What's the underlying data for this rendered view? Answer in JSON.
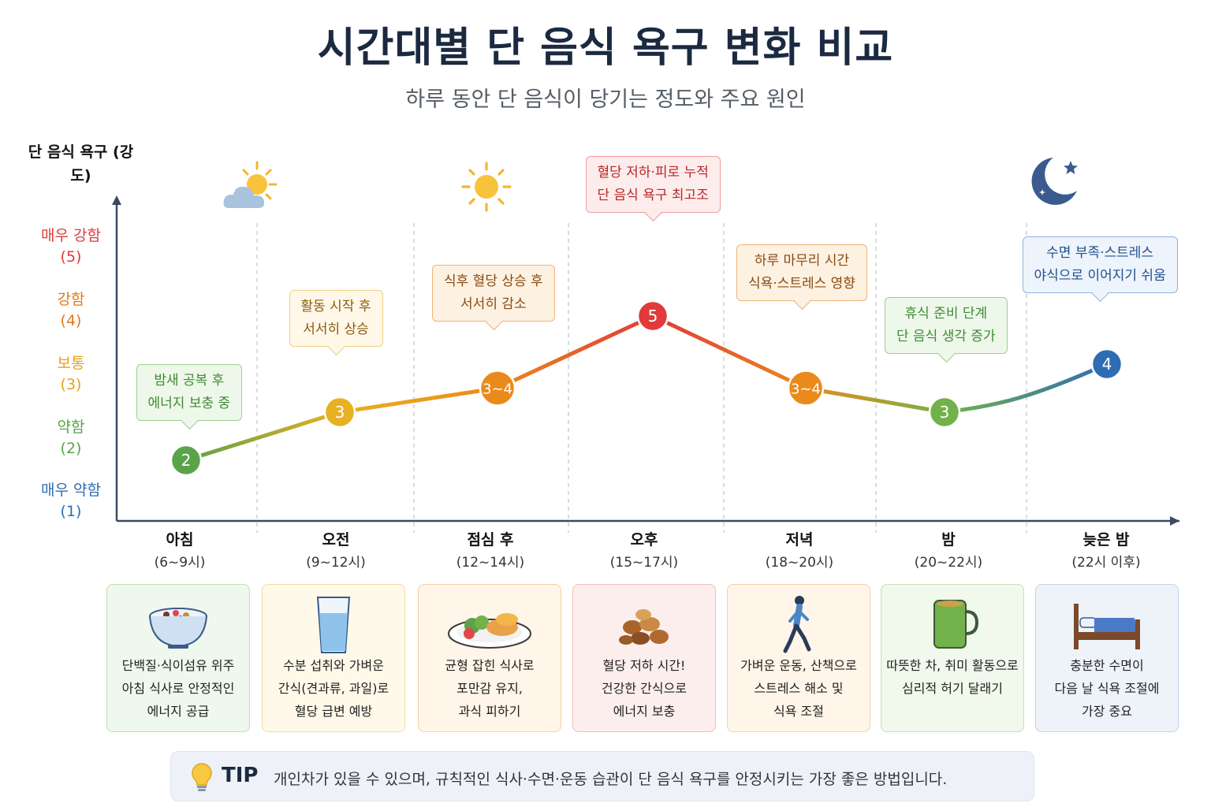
{
  "title": "시간대별 단 음식 욕구 변화 비교",
  "subtitle": "하루 동안 단   음식이 당기는 정도와 주요 원인",
  "colors": {
    "level1": "#2e6db4",
    "level2": "#5aa34a",
    "level3": "#e6a417",
    "level4": "#e07a1b",
    "level5": "#e03a3a",
    "axis": "#3a4a63"
  },
  "chart_data": {
    "type": "line",
    "title": "시간대별 단 음식 욕구 변화 비교",
    "ylabel": "단 음식 욕구 (강도)",
    "ylim": [
      1,
      5
    ],
    "y_ticks": [
      {
        "value": 5,
        "label": "매우 강함",
        "sub": "(5)"
      },
      {
        "value": 4,
        "label": "강함",
        "sub": "(4)"
      },
      {
        "value": 3,
        "label": "보통",
        "sub": "(3)"
      },
      {
        "value": 2,
        "label": "약함",
        "sub": "(2)"
      },
      {
        "value": 1,
        "label": "매우 약함",
        "sub": "(1)"
      }
    ],
    "categories": [
      {
        "name": "아침",
        "range": "(6~9시)"
      },
      {
        "name": "오전",
        "range": "(9~12시)"
      },
      {
        "name": "점심 후",
        "range": "(12~14시)"
      },
      {
        "name": "오후",
        "range": "(15~17시)"
      },
      {
        "name": "저녁",
        "range": "(18~20시)"
      },
      {
        "name": "밤",
        "range": "(20~22시)"
      },
      {
        "name": "늦은 밤",
        "range": "(22시 이후)"
      }
    ],
    "points": [
      {
        "value": 2,
        "label": "2",
        "color": "#5aa34a"
      },
      {
        "value": 3,
        "label": "3",
        "color": "#e8b023"
      },
      {
        "value": 3.5,
        "label": "3~4",
        "color": "#ea8a1c"
      },
      {
        "value": 5,
        "label": "5",
        "color": "#e03a3a"
      },
      {
        "value": 3.5,
        "label": "3~4",
        "color": "#ea8a1c"
      },
      {
        "value": 3,
        "label": "3",
        "color": "#72b24a"
      },
      {
        "value": 4,
        "label": "4",
        "color": "#2e6db4"
      }
    ],
    "annotations": [
      {
        "lines": [
          "밤새 공복 후",
          "에너지 보충 중"
        ],
        "color": "#3d8a34",
        "bg": "#eef8ea",
        "border": "#9fce93"
      },
      {
        "lines": [
          "활동 시작 후",
          "서서히 상승"
        ],
        "color": "#8a5a10",
        "bg": "#fff8e8",
        "border": "#f0cf86"
      },
      {
        "lines": [
          "식후 혈당 상승 후",
          "서서히 감소"
        ],
        "color": "#8a4a10",
        "bg": "#fdf1e2",
        "border": "#f0b276"
      },
      {
        "lines": [
          "혈당 저하·피로 누적",
          "단 음식 욕구 최고조"
        ],
        "color": "#b82626",
        "bg": "#fdecec",
        "border": "#ef9c9c"
      },
      {
        "lines": [
          "하루 마무리 시간",
          "식욕·스트레스 영향"
        ],
        "color": "#8a4a10",
        "bg": "#fdf1e2",
        "border": "#f0b276"
      },
      {
        "lines": [
          "휴식 준비 단계",
          "단 음식 생각 증가"
        ],
        "color": "#3d8a34",
        "bg": "#eef8ea",
        "border": "#9fce93"
      },
      {
        "lines": [
          "수면 부족·스트레스",
          "야식으로 이어지기 쉬움"
        ],
        "color": "#1f4f8a",
        "bg": "#eef4fc",
        "border": "#8db2e0"
      }
    ]
  },
  "weather_icons": [
    "cloud-sun-icon",
    "sun-icon",
    "moon-star-icon"
  ],
  "cards": [
    {
      "icon": "cereal-bowl-icon",
      "lines": [
        "단백질·식이섬유 위주",
        "아침 식사로 안정적인",
        "에너지 공급"
      ],
      "bg": "#eff8ec",
      "border": "#bfe0b3"
    },
    {
      "icon": "water-glass-icon",
      "lines": [
        "수분 섭취와 가벼운",
        "간식(견과류, 과일)로",
        "혈당 급변 예방"
      ],
      "bg": "#fff9ea",
      "border": "#f3dc9f"
    },
    {
      "icon": "balanced-meal-icon",
      "lines": [
        "균형 잡힌 식사로",
        "포만감 유지,",
        "과식 피하기"
      ],
      "bg": "#fff5e8",
      "border": "#f5d2a6"
    },
    {
      "icon": "nuts-icon",
      "lines": [
        "혈당 저하 시간!",
        "건강한 간식으로",
        "에너지 보충"
      ],
      "bg": "#fdeeee",
      "border": "#f3bcbc"
    },
    {
      "icon": "walking-person-icon",
      "lines": [
        "가벼운 운동, 산책으로",
        "스트레스 해소 및",
        "식욕 조절"
      ],
      "bg": "#fff5e8",
      "border": "#f5d2a6"
    },
    {
      "icon": "tea-mug-icon",
      "lines": [
        "따뜻한 차, 취미 활동으로",
        "심리적 허기 달래기"
      ],
      "bg": "#f1f8ec",
      "border": "#c5e2b6"
    },
    {
      "icon": "bed-icon",
      "lines": [
        "충분한 수면이",
        "다음 날 식욕 조절에",
        "가장 중요"
      ],
      "bg": "#eef3fa",
      "border": "#c3d4ea"
    }
  ],
  "tip": {
    "label": "TIP",
    "text": "개인차가 있을 수 있으며, 규칙적인 식사·수면·운동 습관이 단 음식 욕구를 안정시키는 가장 좋은 방법입니다."
  }
}
